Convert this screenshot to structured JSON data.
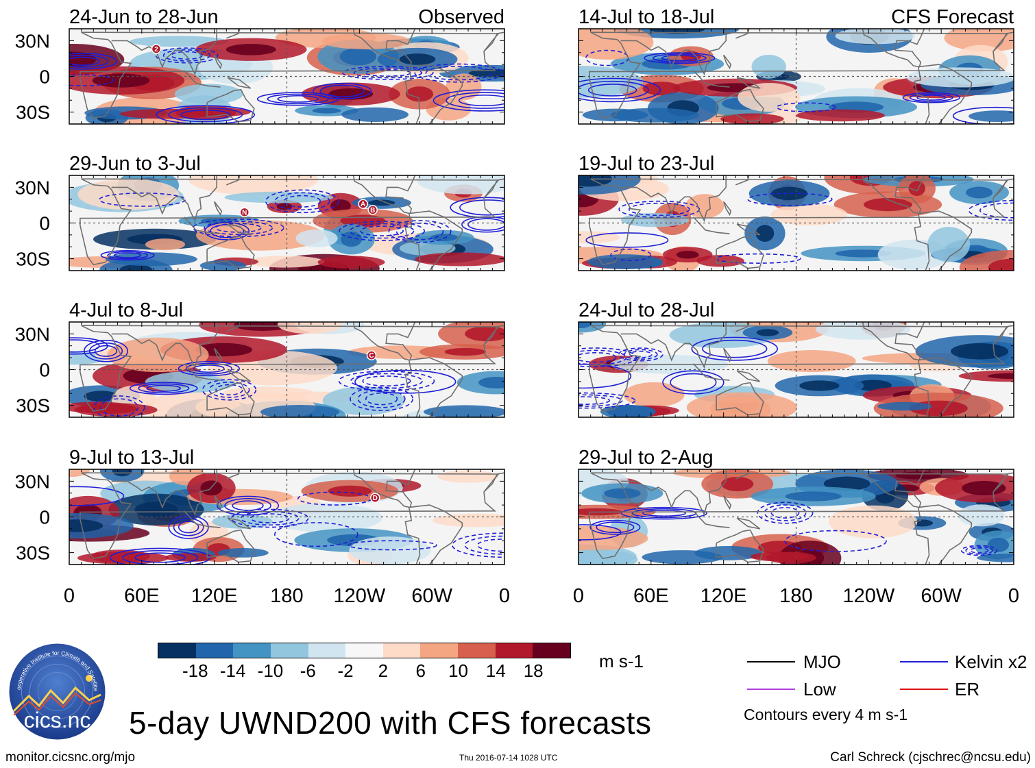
{
  "chart_data": {
    "type": "heatmap",
    "variable": "UWND200",
    "title": "5-day UWND200 with CFS forecasts",
    "units": "m s-1",
    "x_ticks": [
      "0",
      "60E",
      "120E",
      "180",
      "120W",
      "60W",
      "0"
    ],
    "y_ticks": [
      "30N",
      "0",
      "30S"
    ],
    "xlim_deg_east": [
      0,
      360
    ],
    "ylim_deg": [
      -40,
      40
    ],
    "columns": [
      {
        "header": "Observed",
        "panels": [
          {
            "period": "24-Jun to 28-Jun",
            "markers": [
              {
                "label": "2",
                "lon": 72,
                "lat": 23
              }
            ]
          },
          {
            "period": "29-Jun to 3-Jul",
            "markers": [
              {
                "label": "N",
                "lon": 145,
                "lat": 9
              },
              {
                "label": "A",
                "lon": 243,
                "lat": 16
              },
              {
                "label": "B",
                "lon": 251,
                "lat": 11
              }
            ]
          },
          {
            "period": "4-Jul to 8-Jul",
            "markers": [
              {
                "label": "C",
                "lon": 250,
                "lat": 12
              }
            ]
          },
          {
            "period": "9-Jul to 13-Jul",
            "markers": [
              {
                "label": "D",
                "lon": 253,
                "lat": 16
              }
            ]
          }
        ]
      },
      {
        "header": "CFS Forecast",
        "panels": [
          {
            "period": "14-Jul to 18-Jul",
            "markers": []
          },
          {
            "period": "19-Jul to 23-Jul",
            "markers": []
          },
          {
            "period": "24-Jul to 28-Jul",
            "markers": []
          },
          {
            "period": "29-Jul to 2-Aug",
            "markers": []
          }
        ]
      }
    ],
    "colorbar": {
      "colors": [
        "#053061",
        "#2166ac",
        "#4393c3",
        "#92c5de",
        "#d1e5f0",
        "#f7f7f7",
        "#fddbc7",
        "#f4a582",
        "#d6604d",
        "#b2182b",
        "#67001f"
      ],
      "tick_labels": [
        "-18",
        "-14",
        "-10",
        "-6",
        "-2",
        "2",
        "6",
        "10",
        "14",
        "18"
      ]
    },
    "legend": [
      {
        "label": "MJO",
        "color": "#000000"
      },
      {
        "label": "Kelvin x2",
        "color": "#1f1fd6"
      },
      {
        "label": "Low",
        "color": "#b040e0"
      },
      {
        "label": "ER",
        "color": "#e01010"
      }
    ],
    "contour_note": "Contours every 4 m s-1"
  },
  "footer": {
    "left": "monitor.cicsnc.org/mjo",
    "center": "Thu 2016-07-14 1028 UTC",
    "right": "Carl Schreck (cjschrec@ncsu.edu)"
  },
  "logo": {
    "text": "cics.nc",
    "ring_text": "Cooperative Institute for Climate and Satellites"
  }
}
